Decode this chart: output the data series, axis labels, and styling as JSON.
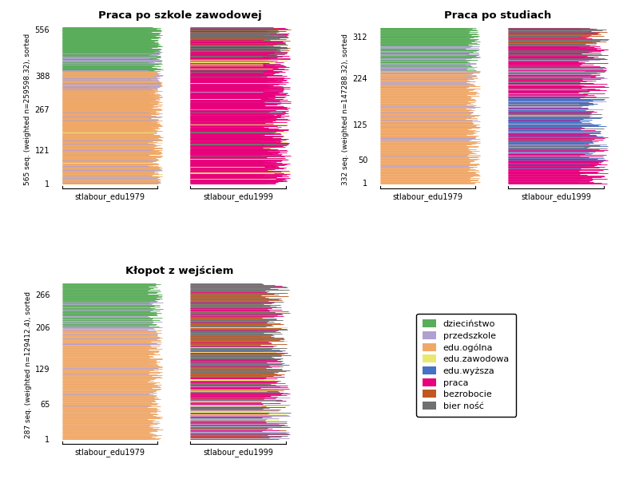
{
  "panels": [
    {
      "title": "Praca po szkole zawodowej",
      "n_seq": 565,
      "weighted_n": "259598.32",
      "yticks": [
        1,
        121,
        267,
        388,
        556
      ],
      "panel_idx": 0
    },
    {
      "title": "Praca po studiach",
      "n_seq": 332,
      "weighted_n": "147288.32",
      "yticks": [
        1,
        50,
        125,
        224,
        312
      ],
      "panel_idx": 1
    },
    {
      "title": "Kłopot z wejściem",
      "n_seq": 287,
      "weighted_n": "129412.4",
      "yticks": [
        1,
        65,
        129,
        206,
        266
      ],
      "panel_idx": 2
    }
  ],
  "colors_list": [
    "#5aad5a",
    "#b0a0d0",
    "#f0a868",
    "#e8e870",
    "#4472c4",
    "#e8007c",
    "#c05820",
    "#707070"
  ],
  "legend_labels": [
    "dzieciństwo",
    "przedszkole",
    "edu.ogólna",
    "edu.zawodowa",
    "edu.wyższa",
    "praca",
    "bezrobocie",
    "bier ność"
  ],
  "xlabel1": "stlabour_edu1979",
  "xlabel2": "stlabour_edu1999",
  "bg_color": "#ffffff"
}
